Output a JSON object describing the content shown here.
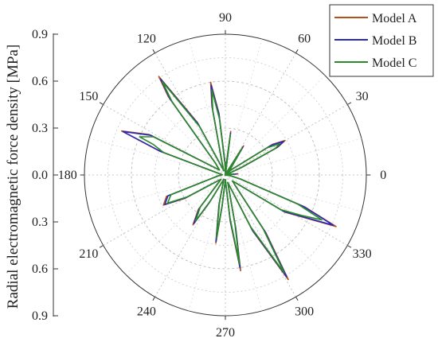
{
  "chart_data": {
    "type": "polar-line",
    "title": "",
    "radial_axis_label": "Radial electromagnetic force density [MPa]",
    "radial_range": [
      0,
      0.9
    ],
    "radial_ticks": [
      0.0,
      0.3,
      0.6,
      0.9
    ],
    "radial_tick_labels_upper": [
      "0.9",
      "0.6",
      "0.3",
      "0.0"
    ],
    "radial_tick_labels_lower": [
      "0.3",
      "0.6",
      "0.9"
    ],
    "angular_ticks": [
      "0",
      "30",
      "60",
      "90",
      "120",
      "150",
      "180",
      "210",
      "240",
      "270",
      "300",
      "330"
    ],
    "grid": true,
    "legend_position": "top-right",
    "series": [
      {
        "name": "Model A",
        "color": "#b5521b",
        "points": [
          [
            0,
            0.0
          ],
          [
            5,
            0.08
          ],
          [
            10,
            0.02
          ],
          [
            15,
            0.0
          ],
          [
            20,
            0.01
          ],
          [
            25,
            0.12
          ],
          [
            28,
            0.38
          ],
          [
            30,
            0.44
          ],
          [
            33,
            0.36
          ],
          [
            40,
            0.06
          ],
          [
            45,
            0.02
          ],
          [
            50,
            0.05
          ],
          [
            58,
            0.22
          ],
          [
            62,
            0.03
          ],
          [
            75,
            0.0
          ],
          [
            83,
            0.28
          ],
          [
            86,
            0.05
          ],
          [
            88,
            0.01
          ],
          [
            92,
            0.08
          ],
          [
            96,
            0.4
          ],
          [
            99,
            0.6
          ],
          [
            101,
            0.45
          ],
          [
            105,
            0.08
          ],
          [
            110,
            0.03
          ],
          [
            118,
            0.38
          ],
          [
            124,
            0.76
          ],
          [
            126,
            0.62
          ],
          [
            130,
            0.1
          ],
          [
            140,
            0.05
          ],
          [
            152,
            0.55
          ],
          [
            157,
            0.72
          ],
          [
            160,
            0.45
          ],
          [
            165,
            0.06
          ],
          [
            175,
            0.02
          ],
          [
            188,
            0.05
          ],
          [
            200,
            0.4
          ],
          [
            206,
            0.44
          ],
          [
            210,
            0.3
          ],
          [
            218,
            0.06
          ],
          [
            225,
            0.04
          ],
          [
            232,
            0.28
          ],
          [
            237,
            0.38
          ],
          [
            240,
            0.2
          ],
          [
            250,
            0.03
          ],
          [
            258,
            0.2
          ],
          [
            262,
            0.44
          ],
          [
            264,
            0.2
          ],
          [
            270,
            0.03
          ],
          [
            276,
            0.3
          ],
          [
            279,
            0.62
          ],
          [
            281,
            0.35
          ],
          [
            288,
            0.05
          ],
          [
            296,
            0.4
          ],
          [
            301,
            0.78
          ],
          [
            305,
            0.45
          ],
          [
            312,
            0.1
          ],
          [
            320,
            0.06
          ],
          [
            328,
            0.45
          ],
          [
            335,
            0.78
          ],
          [
            338,
            0.55
          ],
          [
            345,
            0.1
          ],
          [
            352,
            0.03
          ],
          [
            360,
            0.0
          ]
        ]
      },
      {
        "name": "Model B",
        "color": "#2a2ab8",
        "points": [
          [
            0,
            0.0
          ],
          [
            5,
            0.07
          ],
          [
            10,
            0.02
          ],
          [
            15,
            0.0
          ],
          [
            20,
            0.01
          ],
          [
            25,
            0.11
          ],
          [
            28,
            0.37
          ],
          [
            30,
            0.43
          ],
          [
            33,
            0.35
          ],
          [
            40,
            0.06
          ],
          [
            45,
            0.02
          ],
          [
            50,
            0.05
          ],
          [
            58,
            0.21
          ],
          [
            62,
            0.03
          ],
          [
            75,
            0.0
          ],
          [
            83,
            0.27
          ],
          [
            86,
            0.05
          ],
          [
            88,
            0.01
          ],
          [
            92,
            0.08
          ],
          [
            96,
            0.39
          ],
          [
            99,
            0.58
          ],
          [
            101,
            0.44
          ],
          [
            105,
            0.08
          ],
          [
            110,
            0.03
          ],
          [
            118,
            0.37
          ],
          [
            124,
            0.74
          ],
          [
            126,
            0.6
          ],
          [
            130,
            0.1
          ],
          [
            140,
            0.05
          ],
          [
            152,
            0.54
          ],
          [
            157,
            0.71
          ],
          [
            160,
            0.44
          ],
          [
            165,
            0.06
          ],
          [
            175,
            0.02
          ],
          [
            188,
            0.05
          ],
          [
            200,
            0.39
          ],
          [
            206,
            0.43
          ],
          [
            210,
            0.29
          ],
          [
            218,
            0.06
          ],
          [
            225,
            0.04
          ],
          [
            232,
            0.27
          ],
          [
            237,
            0.37
          ],
          [
            240,
            0.2
          ],
          [
            250,
            0.03
          ],
          [
            258,
            0.19
          ],
          [
            262,
            0.43
          ],
          [
            264,
            0.2
          ],
          [
            270,
            0.03
          ],
          [
            276,
            0.29
          ],
          [
            279,
            0.6
          ],
          [
            281,
            0.34
          ],
          [
            288,
            0.05
          ],
          [
            296,
            0.39
          ],
          [
            301,
            0.76
          ],
          [
            305,
            0.44
          ],
          [
            312,
            0.1
          ],
          [
            320,
            0.06
          ],
          [
            328,
            0.44
          ],
          [
            335,
            0.76
          ],
          [
            338,
            0.54
          ],
          [
            345,
            0.1
          ],
          [
            352,
            0.03
          ],
          [
            360,
            0.0
          ]
        ]
      },
      {
        "name": "Model C",
        "color": "#2a8a2a",
        "points": [
          [
            0,
            0.0
          ],
          [
            5,
            0.06
          ],
          [
            10,
            0.02
          ],
          [
            15,
            0.0
          ],
          [
            20,
            0.01
          ],
          [
            25,
            0.1
          ],
          [
            28,
            0.36
          ],
          [
            30,
            0.4
          ],
          [
            33,
            0.32
          ],
          [
            40,
            0.06
          ],
          [
            45,
            0.02
          ],
          [
            50,
            0.05
          ],
          [
            58,
            0.2
          ],
          [
            62,
            0.03
          ],
          [
            75,
            0.0
          ],
          [
            83,
            0.26
          ],
          [
            86,
            0.05
          ],
          [
            88,
            0.01
          ],
          [
            92,
            0.07
          ],
          [
            96,
            0.36
          ],
          [
            99,
            0.55
          ],
          [
            101,
            0.42
          ],
          [
            105,
            0.08
          ],
          [
            110,
            0.03
          ],
          [
            118,
            0.35
          ],
          [
            124,
            0.72
          ],
          [
            126,
            0.58
          ],
          [
            130,
            0.1
          ],
          [
            140,
            0.05
          ],
          [
            152,
            0.52
          ],
          [
            156,
            0.6
          ],
          [
            157,
            0.5
          ],
          [
            160,
            0.42
          ],
          [
            165,
            0.06
          ],
          [
            175,
            0.02
          ],
          [
            188,
            0.05
          ],
          [
            200,
            0.37
          ],
          [
            206,
            0.41
          ],
          [
            210,
            0.28
          ],
          [
            218,
            0.06
          ],
          [
            225,
            0.04
          ],
          [
            232,
            0.26
          ],
          [
            237,
            0.35
          ],
          [
            240,
            0.19
          ],
          [
            250,
            0.03
          ],
          [
            258,
            0.18
          ],
          [
            262,
            0.41
          ],
          [
            264,
            0.19
          ],
          [
            270,
            0.03
          ],
          [
            276,
            0.27
          ],
          [
            279,
            0.58
          ],
          [
            281,
            0.32
          ],
          [
            288,
            0.05
          ],
          [
            296,
            0.37
          ],
          [
            301,
            0.73
          ],
          [
            305,
            0.42
          ],
          [
            312,
            0.1
          ],
          [
            320,
            0.06
          ],
          [
            328,
            0.42
          ],
          [
            332,
            0.55
          ],
          [
            335,
            0.68
          ],
          [
            338,
            0.5
          ],
          [
            345,
            0.1
          ],
          [
            352,
            0.03
          ],
          [
            360,
            0.0
          ]
        ]
      }
    ]
  }
}
